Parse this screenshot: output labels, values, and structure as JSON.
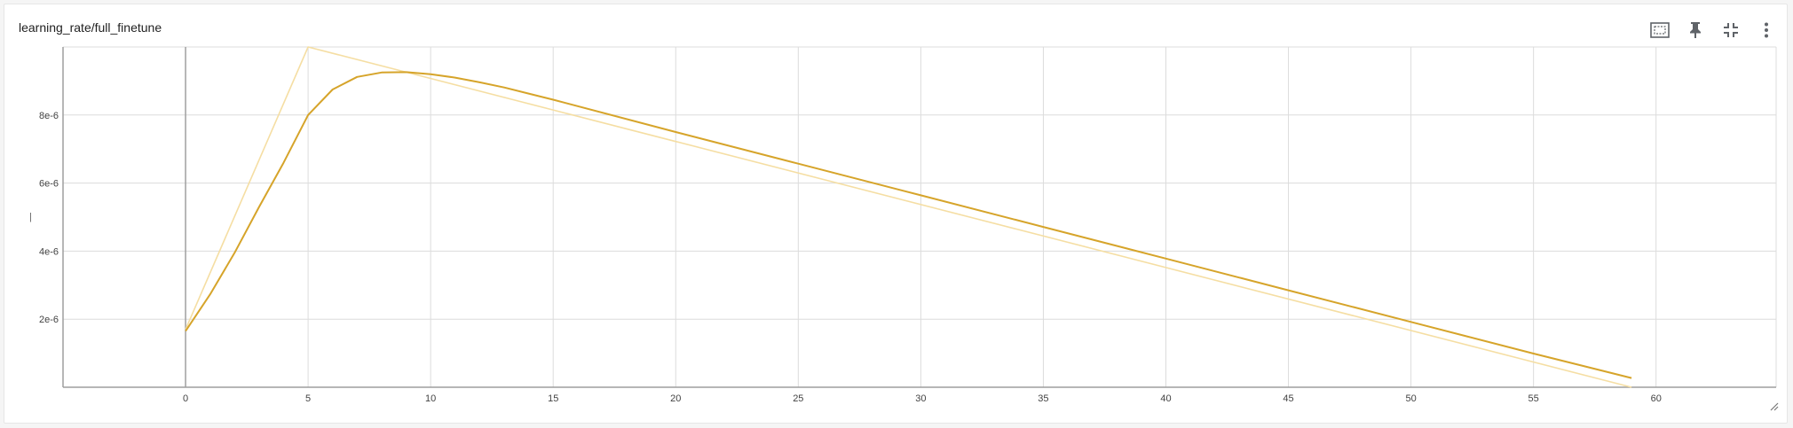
{
  "card": {
    "title": "learning_rate/full_finetune"
  },
  "toolbar": [
    {
      "name": "fit-domain-icon",
      "label": "Fit domain to data"
    },
    {
      "name": "pin-icon",
      "label": "Pin card"
    },
    {
      "name": "collapse-icon",
      "label": "Exit full size"
    },
    {
      "name": "more-vert-icon",
      "label": "More"
    }
  ],
  "colors": {
    "smoothed": "#d6a42a",
    "raw": "#f5dea3",
    "grid": "#dcdcdc",
    "axis": "#9e9e9e",
    "zero_line": "#a0a0a0"
  },
  "chart_data": {
    "type": "line",
    "title": "",
    "xlabel": "",
    "ylabel": "|",
    "xlim": [
      -5,
      64.9
    ],
    "ylim": [
      0,
      1e-05
    ],
    "x_ticks": [
      0,
      5,
      10,
      15,
      20,
      25,
      30,
      35,
      40,
      45,
      50,
      55,
      60
    ],
    "y_ticks": [
      2e-06,
      4e-06,
      6e-06,
      8e-06
    ],
    "y_tick_labels": [
      "2e-6",
      "4e-6",
      "6e-6",
      "8e-6"
    ],
    "grid": true,
    "series": [
      {
        "role": "raw",
        "x": [
          0,
          5,
          59
        ],
        "y": [
          1.7e-06,
          1e-05,
          0.0
        ]
      },
      {
        "role": "smoothed",
        "x": [
          0,
          1,
          2,
          3,
          4,
          5,
          6,
          7,
          8,
          9,
          10,
          11,
          12,
          13,
          14,
          15,
          20,
          25,
          30,
          35,
          40,
          45,
          50,
          55,
          59
        ],
        "y": [
          1.65e-06,
          2.73e-06,
          3.95e-06,
          5.3e-06,
          6.6e-06,
          8e-06,
          8.75e-06,
          9.12e-06,
          9.25e-06,
          9.26e-06,
          9.2e-06,
          9.1e-06,
          8.96e-06,
          8.81e-06,
          8.63e-06,
          8.45e-06,
          7.5e-06,
          6.57e-06,
          5.64e-06,
          4.71e-06,
          3.78e-06,
          2.85e-06,
          1.92e-06,
          9.9e-07,
          2.7e-07
        ]
      }
    ]
  }
}
